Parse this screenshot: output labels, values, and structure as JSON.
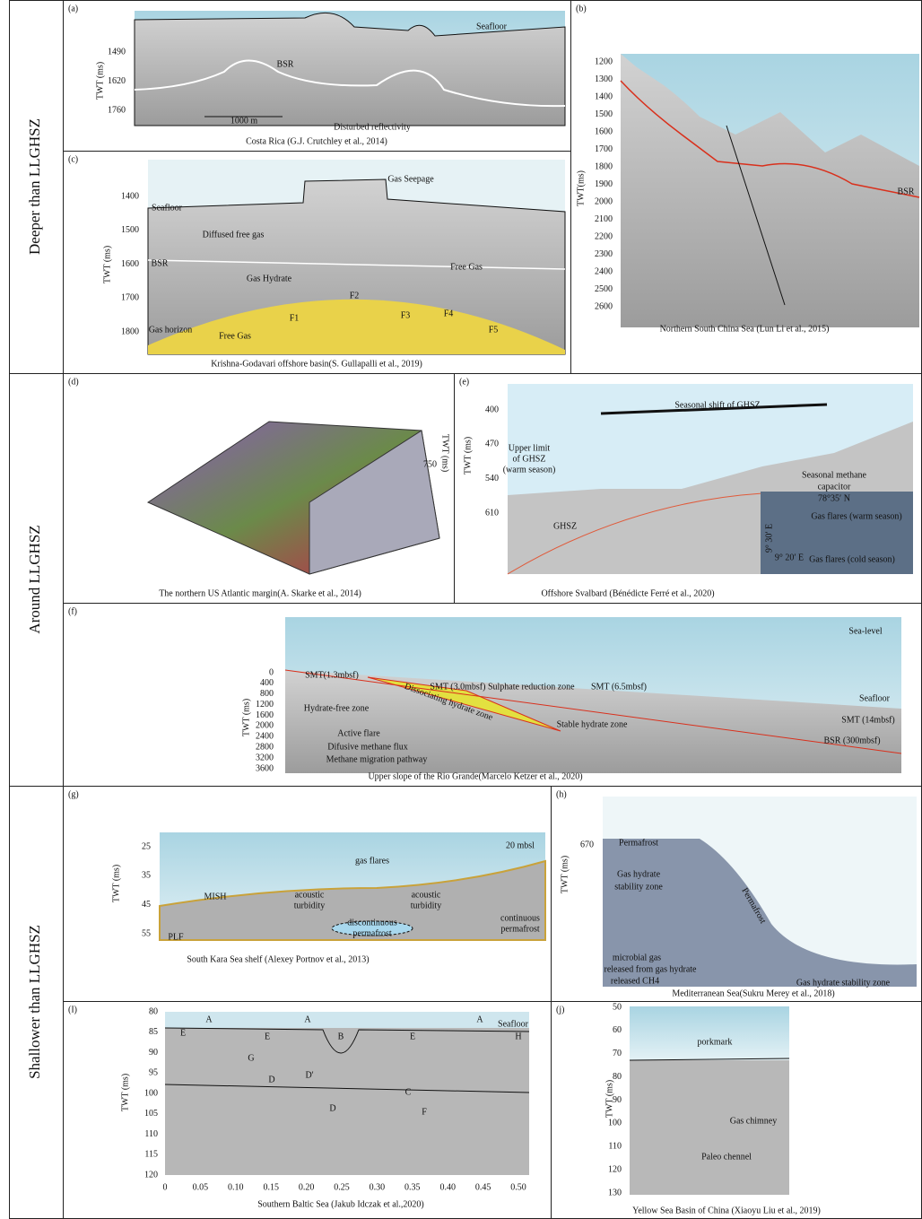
{
  "rows": [
    "Deeper than LLGHSZ",
    "Around LLGHSZ",
    "Shallower than LLGHSZ"
  ],
  "panels": {
    "a": {
      "label": "(a)",
      "caption": "Costa Rica (G.J. Crutchley et al., 2014)",
      "y_label": "TWT (ms)",
      "yticks": [
        "1490",
        "1620",
        "1760"
      ],
      "annotations": [
        "Seafloor",
        "BSR",
        "Disturbed reflectivity",
        "1000 m"
      ]
    },
    "b": {
      "label": "(b)",
      "caption": "Northern South China Sea (Lun Li et al., 2015)",
      "y_label": "TWT(ms)",
      "yticks": [
        "1200",
        "1300",
        "1400",
        "1500",
        "1600",
        "1700",
        "1800",
        "1900",
        "2000",
        "2100",
        "2200",
        "2300",
        "2400",
        "2500",
        "2600"
      ],
      "annotations": [
        "BSR"
      ]
    },
    "c": {
      "label": "(c)",
      "caption": "Krishna-Godavari offshore basin(S. Gullapalli et al., 2019)",
      "y_label": "TWT (ms)",
      "yticks": [
        "1400",
        "1500",
        "1600",
        "1700",
        "1800"
      ],
      "annotations": [
        "Gas Seepage",
        "Seafloor",
        "Diffused free gas",
        "BSR",
        "Free Gas",
        "Gas Hydrate",
        "Gas horizon",
        "Free Gas",
        "F1",
        "F2",
        "F3",
        "F4",
        "F5"
      ]
    },
    "d": {
      "label": "(d)",
      "caption": "The northern US Atlantic margin(A. Skarke et al., 2014)",
      "y_label": "TWT (ms)",
      "yticks": [
        "750"
      ],
      "annotations": []
    },
    "e": {
      "label": "(e)",
      "caption": "Offshore Svalbard (Bénédicte Ferré et al., 2020)",
      "y_label": "TWT (ms)",
      "yticks": [
        "400",
        "470",
        "540",
        "610"
      ],
      "annotations": [
        "Seasonal shift of GHSZ",
        "Upper limit",
        "of GHSZ",
        "(warm season)",
        "Seasonal methane",
        "capacitor",
        "GHSZ",
        "78°35′ N",
        "9° 30′ E",
        "9° 20′ E",
        "Gas flares (warm season)",
        "Gas flares (cold season)"
      ]
    },
    "f": {
      "label": "(f)",
      "caption": "Upper slope of the Rio Grande(Marcelo Ketzer et al., 2020)",
      "y_label": "TWT (ms)",
      "yticks": [
        "0",
        "400",
        "800",
        "1200",
        "1600",
        "2000",
        "2400",
        "2800",
        "3200",
        "3600"
      ],
      "annotations": [
        "Sea-level",
        "SMT(1.3mbsf)",
        "SMT (3.0mbsf) Sulphate reduction zone",
        "SMT (6.5mbsf)",
        "Seafloor",
        "Hydrate-free zone",
        "Dissociating hydrate zone",
        "Stable hydrate zone",
        "SMT (14mbsf)",
        "BSR (300mbsf)",
        "Active flare",
        "Difusive methane flux",
        "Methane migration pathway"
      ]
    },
    "g": {
      "label": "(g)",
      "caption": "South Kara Sea shelf (Alexey Portnov et al., 2013)",
      "y_label": "TWT (ms)",
      "yticks": [
        "25",
        "35",
        "45",
        "55"
      ],
      "annotations": [
        "20 mbsl",
        "gas flares",
        "acoustic",
        "turbidity",
        "acoustic",
        "turbidity",
        "MISH",
        "discontinuous",
        "permafrost",
        "continuous",
        "permafrost",
        "PLF"
      ]
    },
    "h": {
      "label": "(h)",
      "caption": "Mediterranean Sea(Sukru Merey et al., 2018)",
      "y_label": "TWT (ms)",
      "yticks": [
        "670"
      ],
      "annotations": [
        "Permafrost",
        "Gas hydrate",
        "stability zone",
        "Permafrost",
        "Gas hydrate stability zone",
        "microbial gas",
        "released from gas hydrate",
        "released CH4"
      ]
    },
    "i": {
      "label": "(I)",
      "caption": "Southern Baltic Sea (Jakub Idczak et al.,2020)",
      "y_label": "TWT (ms)",
      "yticks": [
        "80",
        "85",
        "90",
        "95",
        "100",
        "105",
        "110",
        "115",
        "120"
      ],
      "xticks": [
        "0",
        "0.05",
        "0.10",
        "0.15",
        "0.20",
        "0.25",
        "0.30",
        "0.35",
        "0.40",
        "0.45",
        "0.50"
      ],
      "annotations": [
        "A",
        "A",
        "A",
        "Seafloor",
        "E",
        "E",
        "B",
        "E",
        "H",
        "G",
        "D",
        "D'",
        "C",
        "D",
        "F"
      ]
    },
    "j": {
      "label": "(j)",
      "caption": "Yellow Sea Basin of China (Xiaoyu Liu et al., 2019)",
      "y_label": "TWT (ms)",
      "yticks": [
        "50",
        "60",
        "70",
        "80",
        "90",
        "100",
        "110",
        "120",
        "130"
      ],
      "annotations": [
        "porkmark",
        "Gas chimney",
        "Paleo chennel"
      ]
    }
  }
}
